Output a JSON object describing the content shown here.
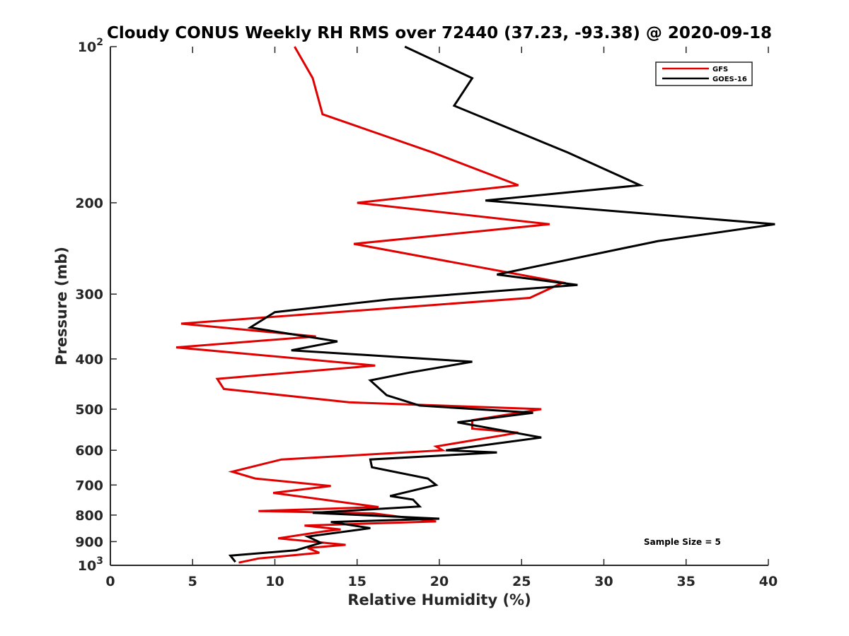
{
  "chart_data": {
    "type": "line",
    "title": "Cloudy CONUS Weekly RH RMS over 72440 (37.23, -93.38) @ 2020-09-18",
    "xlabel": "Relative Humidity (%)",
    "ylabel": "Pressure (mb)",
    "xlim": [
      0,
      40
    ],
    "ylim": [
      100,
      1000
    ],
    "y_scale": "log",
    "y_reversed": true,
    "grid": false,
    "legend_position": "top-right",
    "x_ticks": [
      0,
      5,
      10,
      15,
      20,
      25,
      30,
      35,
      40
    ],
    "x_tick_labels": [
      "0",
      "5",
      "10",
      "15",
      "20",
      "25",
      "30",
      "35",
      "40"
    ],
    "y_ticks": [
      100,
      200,
      300,
      400,
      500,
      600,
      700,
      800,
      900,
      1000
    ],
    "y_tick_labels": [
      {
        "base": "10",
        "exp": "2"
      },
      {
        "base": "200"
      },
      {
        "base": "300"
      },
      {
        "base": "400"
      },
      {
        "base": "500"
      },
      {
        "base": "600"
      },
      {
        "base": "700"
      },
      {
        "base": "800"
      },
      {
        "base": "900"
      },
      {
        "base": "10",
        "exp": "3"
      }
    ],
    "annotation": "Sample Size = 5",
    "series": [
      {
        "name": "GFS",
        "color": "#e00000",
        "points": [
          [
            11.2,
            100
          ],
          [
            12.3,
            115
          ],
          [
            12.9,
            135
          ],
          [
            19.6,
            160
          ],
          [
            24.8,
            185
          ],
          [
            15.0,
            200
          ],
          [
            26.7,
            220
          ],
          [
            14.8,
            240
          ],
          [
            27.5,
            285
          ],
          [
            25.5,
            305
          ],
          [
            4.3,
            342
          ],
          [
            12.5,
            362
          ],
          [
            4.0,
            380
          ],
          [
            16.1,
            412
          ],
          [
            6.5,
            437
          ],
          [
            6.9,
            457
          ],
          [
            14.5,
            485
          ],
          [
            26.2,
            500
          ],
          [
            22.0,
            525
          ],
          [
            22.0,
            545
          ],
          [
            24.8,
            555
          ],
          [
            19.8,
            590
          ],
          [
            20.2,
            600
          ],
          [
            10.4,
            625
          ],
          [
            7.4,
            660
          ],
          [
            8.8,
            680
          ],
          [
            13.4,
            703
          ],
          [
            9.9,
            725
          ],
          [
            16.3,
            772
          ],
          [
            9.0,
            786
          ],
          [
            16.0,
            794
          ],
          [
            19.8,
            823
          ],
          [
            11.8,
            838
          ],
          [
            14.0,
            853
          ],
          [
            13.0,
            860
          ],
          [
            10.2,
            887
          ],
          [
            14.3,
            913
          ],
          [
            12.0,
            926
          ],
          [
            12.7,
            946
          ],
          [
            9.0,
            970
          ],
          [
            7.8,
            988
          ]
        ]
      },
      {
        "name": "GOES-16",
        "color": "#000000",
        "points": [
          [
            17.9,
            100
          ],
          [
            22.0,
            115
          ],
          [
            20.9,
            130
          ],
          [
            27.8,
            160
          ],
          [
            32.2,
            185
          ],
          [
            22.8,
            198
          ],
          [
            40.4,
            220
          ],
          [
            33.3,
            237
          ],
          [
            23.5,
            275
          ],
          [
            28.4,
            288
          ],
          [
            17.0,
            307
          ],
          [
            10.0,
            325
          ],
          [
            8.5,
            348
          ],
          [
            13.8,
            370
          ],
          [
            11.0,
            385
          ],
          [
            22.0,
            405
          ],
          [
            18.2,
            425
          ],
          [
            15.8,
            440
          ],
          [
            16.8,
            470
          ],
          [
            18.8,
            492
          ],
          [
            25.7,
            508
          ],
          [
            21.1,
            530
          ],
          [
            26.2,
            567
          ],
          [
            20.4,
            600
          ],
          [
            23.5,
            606
          ],
          [
            15.8,
            625
          ],
          [
            15.9,
            647
          ],
          [
            19.3,
            680
          ],
          [
            19.8,
            700
          ],
          [
            17.0,
            735
          ],
          [
            18.4,
            747
          ],
          [
            18.8,
            770
          ],
          [
            12.3,
            792
          ],
          [
            20.0,
            813
          ],
          [
            13.4,
            825
          ],
          [
            15.8,
            848
          ],
          [
            12.0,
            880
          ],
          [
            12.8,
            905
          ],
          [
            11.3,
            935
          ],
          [
            7.3,
            958
          ],
          [
            7.6,
            985
          ]
        ]
      }
    ]
  }
}
